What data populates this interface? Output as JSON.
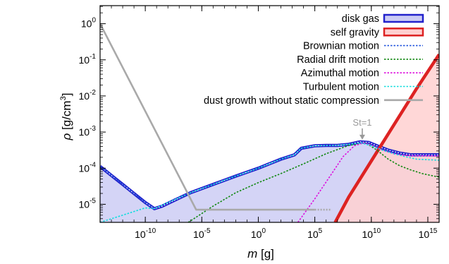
{
  "chart_data": {
    "type": "line",
    "xlabel_symbol": "m",
    "xlabel_unit": "[g]",
    "ylabel_symbol": "ρ",
    "ylabel_unit": "[g/cm",
    "ylabel_unit_sup": "3",
    "ylabel_unit_end": "]",
    "x_scale": "log",
    "y_scale": "log",
    "xlim_log10": [
      -14,
      16
    ],
    "ylim_log10": [
      -5.5,
      0.5
    ],
    "grid": false,
    "legend_position": "top-right",
    "x_ticks": [
      {
        "base": "10",
        "exp": "-10",
        "log10": -10
      },
      {
        "base": "10",
        "exp": "-5",
        "log10": -5
      },
      {
        "base": "10",
        "exp": "0",
        "log10": 0
      },
      {
        "base": "10",
        "exp": "5",
        "log10": 5
      },
      {
        "base": "10",
        "exp": "10",
        "log10": 10
      },
      {
        "base": "10",
        "exp": "15",
        "log10": 15
      }
    ],
    "y_ticks": [
      {
        "base": "10",
        "exp": "0",
        "log10": 0
      },
      {
        "base": "10",
        "exp": "-1",
        "log10": -1
      },
      {
        "base": "10",
        "exp": "-2",
        "log10": -2
      },
      {
        "base": "10",
        "exp": "-3",
        "log10": -3
      },
      {
        "base": "10",
        "exp": "-4",
        "log10": -4
      },
      {
        "base": "10",
        "exp": "-5",
        "log10": -5
      }
    ],
    "series": [
      {
        "name": "disk gas",
        "style": "thick-outline",
        "color": "#2222cc",
        "fill": "#ccccf4",
        "points_log10": [
          [
            -14,
            -3.95
          ],
          [
            -13,
            -4.2
          ],
          [
            -12,
            -4.45
          ],
          [
            -11,
            -4.7
          ],
          [
            -10,
            -4.95
          ],
          [
            -9.2,
            -5.12
          ],
          [
            -8.5,
            -5.05
          ],
          [
            -7.5,
            -4.9
          ],
          [
            -6,
            -4.68
          ],
          [
            -4,
            -4.45
          ],
          [
            -2,
            -4.22
          ],
          [
            0,
            -4.0
          ],
          [
            2,
            -3.75
          ],
          [
            3.2,
            -3.63
          ],
          [
            3.8,
            -3.45
          ],
          [
            5,
            -3.38
          ],
          [
            6,
            -3.37
          ],
          [
            7,
            -3.37
          ],
          [
            8,
            -3.34
          ],
          [
            9,
            -3.27
          ],
          [
            9.8,
            -3.29
          ],
          [
            10.5,
            -3.38
          ],
          [
            11.5,
            -3.5
          ],
          [
            12.5,
            -3.58
          ],
          [
            13.5,
            -3.63
          ],
          [
            16,
            -3.63
          ]
        ]
      },
      {
        "name": "self gravity",
        "style": "thick-outline",
        "color": "#dd2222",
        "fill": "#ffd0d0",
        "points_log10": [
          [
            6.8,
            -5.5
          ],
          [
            8,
            -4.8
          ],
          [
            10,
            -3.8
          ],
          [
            12,
            -2.8
          ],
          [
            14,
            -1.8
          ],
          [
            16,
            -0.85
          ]
        ]
      },
      {
        "name": "Brownian motion",
        "style": "dotted",
        "color": "#2255dd",
        "points_log10": [
          [
            -14,
            -3.95
          ],
          [
            -12,
            -4.45
          ],
          [
            -10,
            -4.95
          ],
          [
            -9.2,
            -5.12
          ]
        ]
      },
      {
        "name": "Radial drift motion",
        "style": "dotted",
        "color": "#118811",
        "points_log10": [
          [
            -6.2,
            -5.5
          ],
          [
            -4,
            -5.05
          ],
          [
            -2,
            -4.68
          ],
          [
            0,
            -4.4
          ],
          [
            2,
            -4.15
          ],
          [
            4,
            -3.88
          ],
          [
            6,
            -3.6
          ],
          [
            8,
            -3.37
          ],
          [
            9.5,
            -3.3
          ],
          [
            10.5,
            -3.5
          ],
          [
            11.5,
            -3.75
          ],
          [
            12.5,
            -3.93
          ],
          [
            13.5,
            -4.05
          ],
          [
            14.5,
            -4.15
          ],
          [
            16,
            -4.25
          ]
        ]
      },
      {
        "name": "Azimuthal motion",
        "style": "dotted",
        "color": "#dd11dd",
        "points_log10": [
          [
            3.5,
            -5.5
          ],
          [
            5,
            -4.85
          ],
          [
            6.5,
            -4.15
          ],
          [
            7.5,
            -3.68
          ],
          [
            8.5,
            -3.38
          ],
          [
            9.3,
            -3.3
          ],
          [
            10,
            -3.36
          ],
          [
            11,
            -3.5
          ],
          [
            12,
            -3.6
          ],
          [
            13,
            -3.65
          ],
          [
            16,
            -3.66
          ]
        ]
      },
      {
        "name": "Turbulent motion",
        "style": "dotted",
        "color": "#11dddd",
        "points_log10": [
          [
            -14,
            -5.5
          ],
          [
            -12,
            -5.3
          ],
          [
            -10,
            -5.1
          ],
          [
            -9.2,
            -5.12
          ],
          [
            -8,
            -4.95
          ],
          [
            -6,
            -4.68
          ],
          [
            -4,
            -4.45
          ],
          [
            -2,
            -4.22
          ],
          [
            0,
            -4.0
          ],
          [
            2,
            -3.75
          ],
          [
            3.2,
            -3.63
          ],
          [
            3.8,
            -3.45
          ],
          [
            5,
            -3.38
          ],
          [
            7,
            -3.37
          ],
          [
            8,
            -3.34
          ],
          [
            9.1,
            -3.3
          ],
          [
            10,
            -3.38
          ],
          [
            11,
            -3.5
          ],
          [
            12,
            -3.6
          ],
          [
            13,
            -3.68
          ],
          [
            14,
            -3.75
          ],
          [
            16,
            -3.78
          ]
        ]
      },
      {
        "name": "dust growth without static compression",
        "style": "solid-thick",
        "color": "#a9a9a9",
        "points_log10": [
          [
            -14,
            0.0
          ],
          [
            -5.5,
            -5.15
          ],
          [
            5,
            -5.15
          ]
        ],
        "dotted_extension_log10": [
          [
            5,
            -5.15
          ],
          [
            6.5,
            -5.15
          ]
        ]
      }
    ],
    "annotations": [
      {
        "text": "St=1",
        "x_log10": 9.2,
        "y_log10": -3.25
      }
    ]
  }
}
